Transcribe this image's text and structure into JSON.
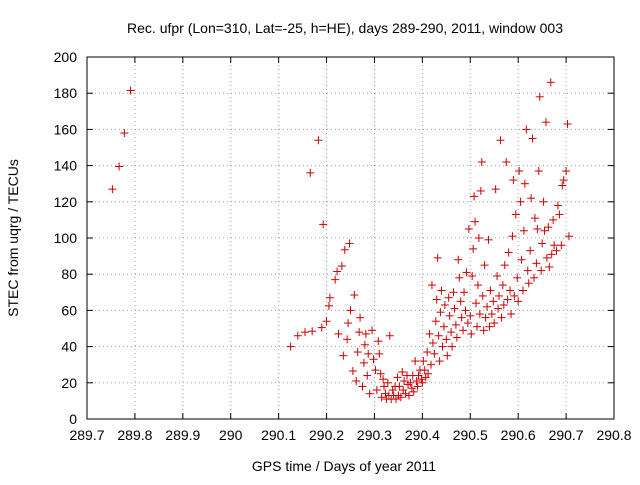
{
  "chart_data": {
    "type": "scatter",
    "title": "Rec. ufpr (Lon=310, Lat=-25, h=HE), days 289-290, 2011, window 003",
    "xlabel": "GPS time / Days of year 2011",
    "ylabel": "STEC from uqrg / TECUs",
    "xlim": [
      289.7,
      290.8
    ],
    "ylim": [
      0,
      200
    ],
    "xticks": [
      289.7,
      289.8,
      289.9,
      290,
      290.1,
      290.2,
      290.3,
      290.4,
      290.5,
      290.6,
      290.7,
      290.8
    ],
    "xtick_labels": [
      "289.7",
      "289.8",
      "289.9",
      "290",
      "290.1",
      "290.2",
      "290.3",
      "290.4",
      "290.5",
      "290.6",
      "290.7",
      "290.8"
    ],
    "yticks": [
      0,
      20,
      40,
      60,
      80,
      100,
      120,
      140,
      160,
      180,
      200
    ],
    "ytick_labels": [
      "0",
      "20",
      "40",
      "60",
      "80",
      "100",
      "120",
      "140",
      "160",
      "180",
      "200"
    ],
    "grid": true,
    "marker": "+",
    "color": "#cc0000",
    "points": [
      [
        289.753,
        127
      ],
      [
        289.767,
        139.5
      ],
      [
        289.778,
        158
      ],
      [
        289.791,
        181.5
      ],
      [
        290.125,
        40
      ],
      [
        290.14,
        46
      ],
      [
        290.155,
        48
      ],
      [
        290.17,
        48.5
      ],
      [
        290.19,
        50.5
      ],
      [
        290.2,
        54
      ],
      [
        290.166,
        136
      ],
      [
        290.183,
        154
      ],
      [
        290.193,
        107.5
      ],
      [
        290.205,
        62.5
      ],
      [
        290.207,
        67
      ],
      [
        290.218,
        77
      ],
      [
        290.222,
        81.5
      ],
      [
        290.232,
        84.5
      ],
      [
        290.238,
        93.5
      ],
      [
        290.248,
        97
      ],
      [
        290.225,
        47
      ],
      [
        290.235,
        35
      ],
      [
        290.243,
        44
      ],
      [
        290.245,
        53
      ],
      [
        290.25,
        60
      ],
      [
        290.255,
        26.5
      ],
      [
        290.258,
        68.5
      ],
      [
        290.262,
        21
      ],
      [
        290.265,
        37
      ],
      [
        290.268,
        48
      ],
      [
        290.27,
        56
      ],
      [
        290.275,
        18
      ],
      [
        290.278,
        31
      ],
      [
        290.28,
        41
      ],
      [
        290.282,
        47
      ],
      [
        290.285,
        24
      ],
      [
        290.287,
        36
      ],
      [
        290.29,
        14
      ],
      [
        290.295,
        49
      ],
      [
        290.298,
        33
      ],
      [
        290.302,
        27
      ],
      [
        290.305,
        16
      ],
      [
        290.308,
        43
      ],
      [
        290.31,
        36
      ],
      [
        290.313,
        25
      ],
      [
        290.315,
        12
      ],
      [
        290.318,
        22
      ],
      [
        290.32,
        18
      ],
      [
        290.323,
        14
      ],
      [
        290.325,
        11
      ],
      [
        290.328,
        20
      ],
      [
        290.33,
        13
      ],
      [
        290.332,
        46
      ],
      [
        290.335,
        11
      ],
      [
        290.338,
        16
      ],
      [
        290.34,
        13
      ],
      [
        290.343,
        18
      ],
      [
        290.345,
        11
      ],
      [
        290.348,
        23
      ],
      [
        290.35,
        13
      ],
      [
        290.352,
        18
      ],
      [
        290.355,
        12
      ],
      [
        290.358,
        26
      ],
      [
        290.36,
        16
      ],
      [
        290.362,
        21
      ],
      [
        290.365,
        14
      ],
      [
        290.368,
        24
      ],
      [
        290.37,
        19
      ],
      [
        290.372,
        13
      ],
      [
        290.375,
        20
      ],
      [
        290.378,
        17
      ],
      [
        290.38,
        24
      ],
      [
        290.382,
        15
      ],
      [
        290.385,
        32
      ],
      [
        290.388,
        21
      ],
      [
        290.39,
        18
      ],
      [
        290.392,
        24
      ],
      [
        290.395,
        27
      ],
      [
        290.398,
        22
      ],
      [
        290.4,
        20
      ],
      [
        290.402,
        32
      ],
      [
        290.405,
        27
      ],
      [
        290.407,
        23
      ],
      [
        290.41,
        37
      ],
      [
        290.412,
        25
      ],
      [
        290.415,
        47
      ],
      [
        290.418,
        30
      ],
      [
        290.42,
        74
      ],
      [
        290.422,
        42
      ],
      [
        290.425,
        36
      ],
      [
        290.428,
        54
      ],
      [
        290.43,
        66
      ],
      [
        290.432,
        89
      ],
      [
        290.434,
        46
      ],
      [
        290.436,
        32
      ],
      [
        290.438,
        59
      ],
      [
        290.44,
        71
      ],
      [
        290.442,
        40
      ],
      [
        290.445,
        51
      ],
      [
        290.447,
        63
      ],
      [
        290.45,
        44
      ],
      [
        290.452,
        35
      ],
      [
        290.455,
        67
      ],
      [
        290.457,
        57
      ],
      [
        290.46,
        48
      ],
      [
        290.462,
        40
      ],
      [
        290.465,
        70
      ],
      [
        290.467,
        61
      ],
      [
        290.47,
        52
      ],
      [
        290.472,
        45
      ],
      [
        290.475,
        88
      ],
      [
        290.477,
        78
      ],
      [
        290.48,
        65
      ],
      [
        290.482,
        56
      ],
      [
        290.485,
        49
      ],
      [
        290.487,
        70
      ],
      [
        290.49,
        60
      ],
      [
        290.492,
        81
      ],
      [
        290.495,
        53
      ],
      [
        290.497,
        105
      ],
      [
        290.5,
        57
      ],
      [
        290.502,
        47
      ],
      [
        290.504,
        79
      ],
      [
        290.506,
        94
      ],
      [
        290.508,
        123
      ],
      [
        290.51,
        109
      ],
      [
        290.512,
        64
      ],
      [
        290.514,
        51
      ],
      [
        290.516,
        74
      ],
      [
        290.518,
        100
      ],
      [
        290.52,
        58
      ],
      [
        290.522,
        126
      ],
      [
        290.524,
        142
      ],
      [
        290.526,
        68
      ],
      [
        290.528,
        49
      ],
      [
        290.53,
        85
      ],
      [
        290.532,
        56
      ],
      [
        290.535,
        62
      ],
      [
        290.538,
        99
      ],
      [
        290.54,
        51
      ],
      [
        290.542,
        71
      ],
      [
        290.545,
        58
      ],
      [
        290.548,
        65
      ],
      [
        290.55,
        53
      ],
      [
        290.553,
        127
      ],
      [
        290.556,
        79
      ],
      [
        290.558,
        61
      ],
      [
        290.56,
        68
      ],
      [
        290.563,
        154
      ],
      [
        290.565,
        56
      ],
      [
        290.568,
        74
      ],
      [
        290.57,
        63
      ],
      [
        290.572,
        85
      ],
      [
        290.575,
        142
      ],
      [
        290.578,
        66
      ],
      [
        290.58,
        92
      ],
      [
        290.583,
        71
      ],
      [
        290.585,
        58
      ],
      [
        290.588,
        101
      ],
      [
        290.59,
        132
      ],
      [
        290.592,
        68
      ],
      [
        290.595,
        113
      ],
      [
        290.598,
        78
      ],
      [
        290.6,
        65
      ],
      [
        290.602,
        137
      ],
      [
        290.605,
        120
      ],
      [
        290.607,
        88
      ],
      [
        290.61,
        71
      ],
      [
        290.612,
        104
      ],
      [
        290.614,
        130
      ],
      [
        290.617,
        160
      ],
      [
        290.62,
        82
      ],
      [
        290.622,
        75
      ],
      [
        290.625,
        93
      ],
      [
        290.627,
        122
      ],
      [
        290.63,
        155
      ],
      [
        290.633,
        78
      ],
      [
        290.635,
        111
      ],
      [
        290.638,
        86
      ],
      [
        290.64,
        105
      ],
      [
        290.643,
        137
      ],
      [
        290.645,
        178
      ],
      [
        290.648,
        82
      ],
      [
        290.65,
        97
      ],
      [
        290.653,
        120
      ],
      [
        290.655,
        104
      ],
      [
        290.658,
        164
      ],
      [
        290.66,
        89
      ],
      [
        290.663,
        106
      ],
      [
        290.665,
        84
      ],
      [
        290.668,
        186
      ],
      [
        290.67,
        91
      ],
      [
        290.673,
        110
      ],
      [
        290.675,
        96
      ],
      [
        290.68,
        93
      ],
      [
        290.683,
        118
      ],
      [
        290.686,
        113
      ],
      [
        290.69,
        96
      ],
      [
        290.692,
        129
      ],
      [
        290.695,
        132
      ],
      [
        290.7,
        137
      ],
      [
        290.703,
        163
      ],
      [
        290.706,
        101
      ]
    ]
  }
}
